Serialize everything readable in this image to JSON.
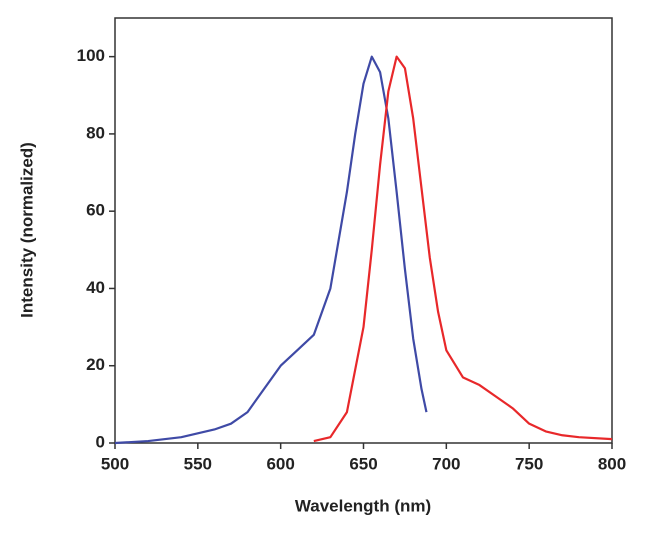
{
  "chart_data": {
    "type": "line",
    "x_label": "Wavelength (nm)",
    "y_label": "Intensity (normalized)",
    "xlim": [
      500,
      800
    ],
    "xticks": [
      500,
      550,
      600,
      650,
      700,
      750,
      800
    ],
    "ylim": [
      0,
      110
    ],
    "yticks": [
      0,
      20,
      40,
      60,
      80,
      100
    ],
    "series": [
      {
        "color": "#3f4aa6",
        "x": [
          500,
          520,
          540,
          560,
          570,
          580,
          590,
          600,
          610,
          620,
          630,
          640,
          645,
          650,
          655,
          660,
          665,
          670,
          675,
          680,
          685,
          688
        ],
        "values": [
          0,
          0.5,
          1.5,
          3.5,
          5,
          8,
          14,
          20,
          24,
          28,
          40,
          65,
          80,
          93,
          100,
          96,
          84,
          65,
          45,
          27,
          14,
          8
        ]
      },
      {
        "color": "#e8282a",
        "x": [
          620,
          630,
          640,
          650,
          655,
          660,
          665,
          670,
          675,
          680,
          685,
          690,
          695,
          700,
          710,
          720,
          730,
          740,
          750,
          760,
          770,
          780,
          800
        ],
        "values": [
          0.5,
          1.5,
          8,
          30,
          50,
          72,
          91,
          100,
          97,
          84,
          66,
          48,
          34,
          24,
          17,
          15,
          12,
          9,
          5,
          3,
          2,
          1.5,
          1
        ]
      }
    ]
  }
}
